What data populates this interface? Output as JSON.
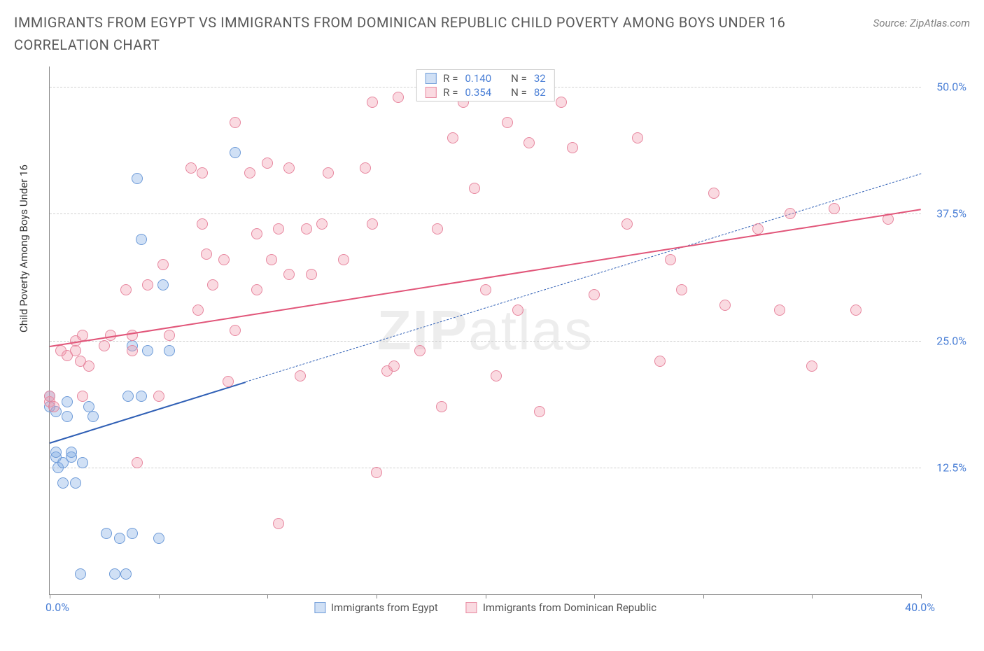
{
  "title": "IMMIGRANTS FROM EGYPT VS IMMIGRANTS FROM DOMINICAN REPUBLIC CHILD POVERTY AMONG BOYS UNDER 16 CORRELATION CHART",
  "source": "Source: ZipAtlas.com",
  "watermark": "ZIPatlas",
  "chart": {
    "type": "scatter",
    "background_color": "#ffffff",
    "grid_color": "#d0d0d0",
    "axis_color": "#888888",
    "ylab": "Child Poverty Among Boys Under 16",
    "xlim": [
      0,
      40
    ],
    "ylim": [
      0,
      52
    ],
    "x_axis_min_label": "0.0%",
    "x_axis_max_label": "40.0%",
    "xticks": [
      0,
      5,
      10,
      15,
      20,
      25,
      30,
      35,
      40
    ],
    "yticks": [
      {
        "v": 12.5,
        "label": "12.5%"
      },
      {
        "v": 25.0,
        "label": "25.0%"
      },
      {
        "v": 37.5,
        "label": "37.5%"
      },
      {
        "v": 50.0,
        "label": "50.0%"
      }
    ],
    "tick_label_color": "#4a7fd6",
    "tick_label_fontsize": 16,
    "point_radius": 8,
    "point_stroke_width": 1.5,
    "trend_width": 2.5,
    "label_fontsize": 15
  },
  "series": [
    {
      "name": "Immigrants from Egypt",
      "color_fill": "rgba(120,165,225,0.35)",
      "color_stroke": "#6e9bd8",
      "line_color": "#2f5fb5",
      "r_label": "R =",
      "r_value": "0.140",
      "n_label": "N =",
      "n_value": "32",
      "trend": {
        "x1": 0,
        "y1": 15.0,
        "x2": 9,
        "y2": 21.0,
        "dashed": false
      },
      "trend_ext": {
        "x1": 9,
        "y1": 21.0,
        "x2": 40,
        "y2": 41.5,
        "dashed": true
      },
      "points": [
        [
          0.0,
          18.5
        ],
        [
          0.0,
          19.5
        ],
        [
          0.3,
          13.5
        ],
        [
          0.3,
          14.0
        ],
        [
          0.3,
          18.0
        ],
        [
          0.4,
          12.5
        ],
        [
          0.6,
          11.0
        ],
        [
          0.6,
          13.0
        ],
        [
          0.8,
          19.0
        ],
        [
          0.8,
          17.5
        ],
        [
          1.0,
          13.5
        ],
        [
          1.0,
          14.0
        ],
        [
          1.2,
          11.0
        ],
        [
          1.4,
          2.0
        ],
        [
          1.5,
          13.0
        ],
        [
          1.8,
          18.5
        ],
        [
          2.0,
          17.5
        ],
        [
          2.6,
          6.0
        ],
        [
          3.0,
          2.0
        ],
        [
          3.2,
          5.5
        ],
        [
          3.5,
          2.0
        ],
        [
          3.6,
          19.5
        ],
        [
          3.8,
          24.5
        ],
        [
          3.8,
          6.0
        ],
        [
          4.0,
          41.0
        ],
        [
          4.2,
          35.0
        ],
        [
          4.2,
          19.5
        ],
        [
          4.5,
          24.0
        ],
        [
          5.0,
          5.5
        ],
        [
          5.2,
          30.5
        ],
        [
          5.5,
          24.0
        ],
        [
          8.5,
          43.5
        ]
      ]
    },
    {
      "name": "Immigrants from Dominican Republic",
      "color_fill": "rgba(240,150,170,0.35)",
      "color_stroke": "#e7879f",
      "line_color": "#e15579",
      "r_label": "R =",
      "r_value": "0.354",
      "n_label": "N =",
      "n_value": "82",
      "trend": {
        "x1": 0,
        "y1": 24.5,
        "x2": 40,
        "y2": 38.0,
        "dashed": false
      },
      "points": [
        [
          0.0,
          19.0
        ],
        [
          0.0,
          19.5
        ],
        [
          0.2,
          18.5
        ],
        [
          0.5,
          24.0
        ],
        [
          0.8,
          23.5
        ],
        [
          1.2,
          25.0
        ],
        [
          1.2,
          24.0
        ],
        [
          1.4,
          23.0
        ],
        [
          1.5,
          19.5
        ],
        [
          1.5,
          25.5
        ],
        [
          1.8,
          22.5
        ],
        [
          2.5,
          24.5
        ],
        [
          2.8,
          25.5
        ],
        [
          3.5,
          30.0
        ],
        [
          3.8,
          24.0
        ],
        [
          3.8,
          25.5
        ],
        [
          4.0,
          13.0
        ],
        [
          4.5,
          30.5
        ],
        [
          5.0,
          19.5
        ],
        [
          5.2,
          32.5
        ],
        [
          5.5,
          25.5
        ],
        [
          6.5,
          42.0
        ],
        [
          6.8,
          28.0
        ],
        [
          7.0,
          36.5
        ],
        [
          7.0,
          41.5
        ],
        [
          7.2,
          33.5
        ],
        [
          7.5,
          30.5
        ],
        [
          8.0,
          33.0
        ],
        [
          8.2,
          21.0
        ],
        [
          8.5,
          46.5
        ],
        [
          8.5,
          26.0
        ],
        [
          9.2,
          41.5
        ],
        [
          9.5,
          35.5
        ],
        [
          9.5,
          30.0
        ],
        [
          10.0,
          42.5
        ],
        [
          10.2,
          33.0
        ],
        [
          10.5,
          36.0
        ],
        [
          10.5,
          7.0
        ],
        [
          11.0,
          31.5
        ],
        [
          11.0,
          42.0
        ],
        [
          11.5,
          21.5
        ],
        [
          11.8,
          36.0
        ],
        [
          12.0,
          31.5
        ],
        [
          12.5,
          36.5
        ],
        [
          12.8,
          41.5
        ],
        [
          13.5,
          33.0
        ],
        [
          14.5,
          42.0
        ],
        [
          14.8,
          36.5
        ],
        [
          14.8,
          48.5
        ],
        [
          15.0,
          12.0
        ],
        [
          15.5,
          22.0
        ],
        [
          15.8,
          22.5
        ],
        [
          16.0,
          49.0
        ],
        [
          17.0,
          24.0
        ],
        [
          17.8,
          36.0
        ],
        [
          18.0,
          18.5
        ],
        [
          18.5,
          45.0
        ],
        [
          19.0,
          48.5
        ],
        [
          19.5,
          40.0
        ],
        [
          20.0,
          30.0
        ],
        [
          20.5,
          21.5
        ],
        [
          21.0,
          46.5
        ],
        [
          21.5,
          28.0
        ],
        [
          22.0,
          44.5
        ],
        [
          22.5,
          18.0
        ],
        [
          23.5,
          48.5
        ],
        [
          24.0,
          44.0
        ],
        [
          25.0,
          29.5
        ],
        [
          26.5,
          36.5
        ],
        [
          27.0,
          45.0
        ],
        [
          28.0,
          23.0
        ],
        [
          28.5,
          33.0
        ],
        [
          29.0,
          30.0
        ],
        [
          30.5,
          39.5
        ],
        [
          31.0,
          28.5
        ],
        [
          32.5,
          36.0
        ],
        [
          33.5,
          28.0
        ],
        [
          34.0,
          37.5
        ],
        [
          35.0,
          22.5
        ],
        [
          36.0,
          38.0
        ],
        [
          37.0,
          28.0
        ],
        [
          38.5,
          37.0
        ]
      ]
    }
  ],
  "legend_bottom": [
    {
      "label": "Immigrants from Egypt"
    },
    {
      "label": "Immigrants from Dominican Republic"
    }
  ]
}
